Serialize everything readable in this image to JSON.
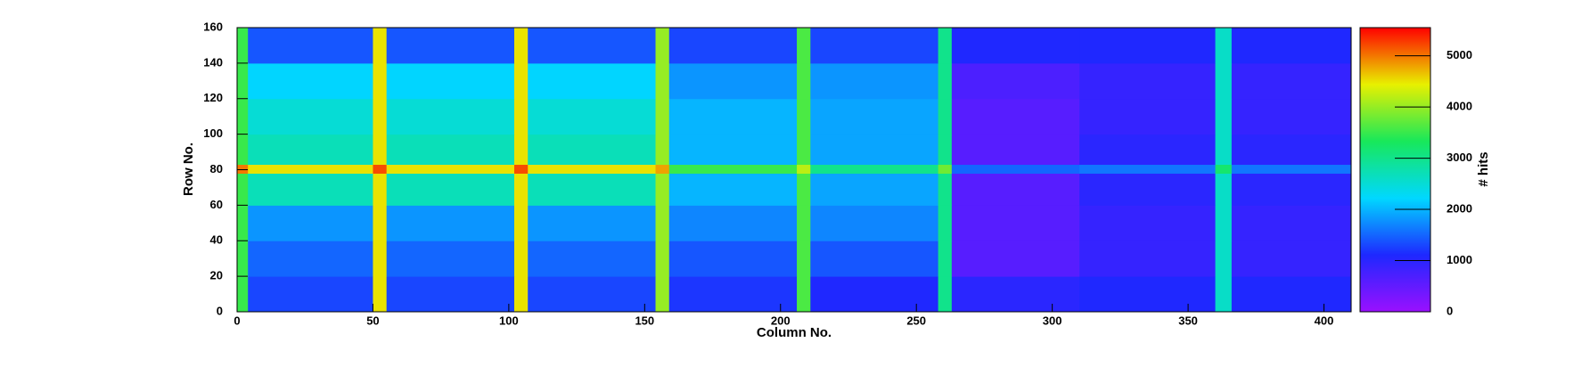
{
  "chart_data": {
    "type": "heatmap",
    "xlabel": "Column No.",
    "ylabel": "Row No.",
    "zlabel": "# hits",
    "xedges": [
      0,
      4,
      50,
      55,
      102,
      107,
      154,
      159,
      206,
      211,
      258,
      263,
      310,
      360,
      366,
      410
    ],
    "yedges": [
      0,
      20,
      40,
      60,
      78,
      83,
      100,
      120,
      140,
      160
    ],
    "z": [
      [
        3500,
        1300,
        4500,
        1300,
        4500,
        1300,
        4000,
        1200,
        3600,
        1100,
        3000,
        1000,
        1100,
        2600,
        1100
      ],
      [
        3500,
        1500,
        4500,
        1500,
        4500,
        1500,
        4000,
        1400,
        3600,
        1400,
        3000,
        600,
        900,
        2600,
        900
      ],
      [
        3500,
        1800,
        4500,
        1800,
        4500,
        1800,
        4000,
        1700,
        3600,
        1700,
        3000,
        600,
        900,
        2600,
        900
      ],
      [
        3500,
        2700,
        4500,
        2700,
        4500,
        2700,
        4000,
        2000,
        3600,
        1900,
        3000,
        600,
        1000,
        2600,
        1000
      ],
      [
        5000,
        4500,
        5200,
        4500,
        5200,
        4500,
        4800,
        3500,
        4200,
        3000,
        3800,
        1500,
        1600,
        3200,
        1600
      ],
      [
        3500,
        2700,
        4500,
        2700,
        4500,
        2700,
        4000,
        2000,
        3600,
        1900,
        3000,
        600,
        1000,
        2600,
        1000
      ],
      [
        3500,
        2500,
        4500,
        2500,
        4500,
        2500,
        4000,
        2000,
        3600,
        1900,
        3000,
        600,
        900,
        2600,
        900
      ],
      [
        3500,
        2200,
        4500,
        2200,
        4500,
        2200,
        4000,
        1800,
        3600,
        1800,
        3000,
        700,
        900,
        2600,
        900
      ],
      [
        3500,
        1400,
        4500,
        1400,
        4500,
        1400,
        4000,
        1300,
        3600,
        1300,
        3000,
        1100,
        1100,
        2600,
        1100
      ]
    ],
    "xlim": [
      0,
      410
    ],
    "ylim": [
      0,
      160
    ],
    "zlim": [
      0,
      5550
    ],
    "xticks": [
      0,
      50,
      100,
      150,
      200,
      250,
      300,
      350,
      400
    ],
    "yticks": [
      0,
      20,
      40,
      60,
      80,
      100,
      120,
      140,
      160
    ],
    "zticks": [
      0,
      1000,
      2000,
      3000,
      4000,
      5000
    ],
    "colorscale": [
      "#9a10ff",
      "#1e28ff",
      "#00d8ff",
      "#18e85a",
      "#e8f000",
      "#ff0000"
    ]
  }
}
